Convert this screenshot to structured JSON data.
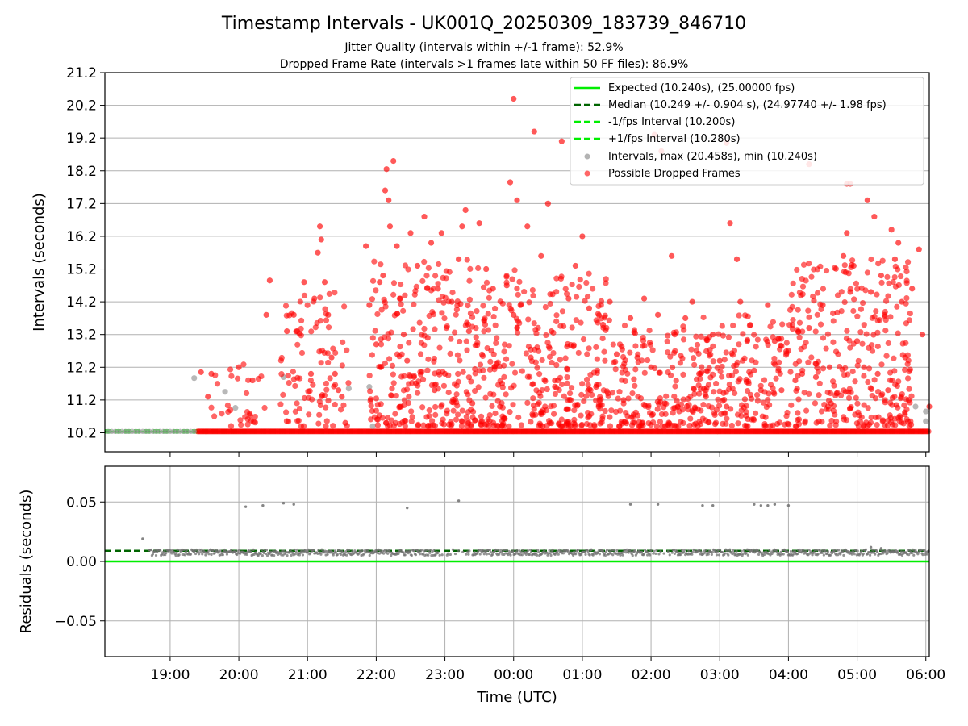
{
  "chart_data": [
    {
      "type": "scatter",
      "title": "Timestamp Intervals - UK001Q_20250309_183739_846710",
      "subtitle_lines": [
        "Jitter Quality (intervals within +/-1 frame): 52.9%",
        "Dropped Frame Rate (intervals >1 frames late within 50 FF files): 86.9%"
      ],
      "ylabel": "Intervals (seconds)",
      "xlabel": "",
      "x_unit": "hours (UTC) since 00:00 on the first day; values >24 are after midnight",
      "xlim": [
        18.05,
        30.05
      ],
      "ylim": [
        9.62,
        21.2
      ],
      "yticks": [
        10.2,
        11.2,
        12.2,
        13.2,
        14.2,
        15.2,
        16.2,
        17.2,
        18.2,
        19.2,
        20.2,
        21.2
      ],
      "ytick_labels": [
        "10.2",
        "11.2",
        "12.2",
        "13.2",
        "14.2",
        "15.2",
        "16.2",
        "17.2",
        "18.2",
        "19.2",
        "20.2",
        "21.2"
      ],
      "grid": true,
      "legend_position": "top-right",
      "legend": [
        "Expected (10.240s), (25.00000 fps)",
        "Median (10.249 +/- 0.904 s), (24.97740 +/- 1.98 fps)",
        "-1/fps Interval (10.200s)",
        "+1/fps Interval (10.280s)",
        "Intervals, max (20.458s), min (10.240s)",
        "Possible Dropped Frames"
      ],
      "reference_lines": [
        {
          "name": "Expected",
          "y": 10.24,
          "color": "#00ee00",
          "style": "solid"
        },
        {
          "name": "Median",
          "y": 10.249,
          "color": "#006400",
          "style": "dashed"
        },
        {
          "name": "-1/fps",
          "y": 10.2,
          "color": "#00ee00",
          "style": "dashed"
        },
        {
          "name": "+1/fps",
          "y": 10.28,
          "color": "#00ee00",
          "style": "dashed"
        }
      ],
      "series": [
        {
          "points": [
            [
              19.35,
              11.87
            ],
            [
              19.8,
              11.45
            ],
            [
              19.95,
              10.96
            ],
            [
              20.65,
              11.9
            ],
            [
              21.6,
              11.55
            ],
            [
              21.9,
              11.6
            ],
            [
              21.95,
              10.4
            ],
            [
              29.85,
              11.0
            ],
            [
              30.0,
              10.85
            ],
            [
              30.0,
              10.55
            ]
          ],
          "color": "#a0a0a0"
        },
        {
          "points": [
            [
              19.45,
              12.05
            ],
            [
              19.55,
              11.3
            ],
            [
              19.6,
              12.0
            ],
            [
              20.0,
              12.2
            ],
            [
              20.2,
              11.8
            ],
            [
              20.4,
              13.8
            ],
            [
              20.45,
              14.85
            ],
            [
              20.7,
              13.3
            ],
            [
              20.8,
              13.8
            ],
            [
              20.85,
              13.3
            ],
            [
              20.95,
              14.8
            ],
            [
              21.05,
              12.0
            ],
            [
              21.1,
              14.3
            ],
            [
              21.15,
              15.7
            ],
            [
              21.18,
              16.5
            ],
            [
              21.2,
              16.1
            ],
            [
              21.25,
              14.8
            ],
            [
              21.3,
              13.8
            ],
            [
              21.35,
              12.5
            ],
            [
              21.4,
              12.0
            ],
            [
              21.45,
              11.5
            ],
            [
              21.5,
              11.3
            ],
            [
              21.55,
              10.5
            ],
            [
              21.85,
              15.9
            ],
            [
              21.9,
              14.1
            ],
            [
              22.0,
              12.9
            ],
            [
              22.05,
              14.8
            ],
            [
              22.1,
              15.0
            ],
            [
              22.13,
              17.6
            ],
            [
              22.15,
              18.25
            ],
            [
              22.18,
              17.3
            ],
            [
              22.2,
              16.5
            ],
            [
              22.25,
              18.5
            ],
            [
              22.3,
              15.9
            ],
            [
              22.35,
              14.3
            ],
            [
              22.4,
              13.2
            ],
            [
              22.45,
              12.4
            ],
            [
              22.5,
              16.3
            ],
            [
              22.55,
              11.9
            ],
            [
              22.6,
              15.3
            ],
            [
              22.7,
              16.8
            ],
            [
              22.75,
              13.1
            ],
            [
              22.8,
              16.0
            ],
            [
              22.85,
              11.5
            ],
            [
              22.9,
              14.6
            ],
            [
              22.95,
              16.3
            ],
            [
              23.0,
              12.0
            ],
            [
              23.1,
              14.2
            ],
            [
              23.2,
              15.5
            ],
            [
              23.25,
              16.5
            ],
            [
              23.3,
              17.0
            ],
            [
              23.35,
              13.3
            ],
            [
              23.4,
              11.1
            ],
            [
              23.5,
              16.6
            ],
            [
              23.6,
              15.2
            ],
            [
              23.7,
              14.6
            ],
            [
              23.75,
              12.3
            ],
            [
              23.8,
              11.0
            ],
            [
              23.9,
              14.7
            ],
            [
              23.95,
              17.85
            ],
            [
              24.0,
              13.8
            ],
            [
              24.05,
              17.3
            ],
            [
              24.1,
              14.1
            ],
            [
              24.2,
              16.5
            ],
            [
              24.25,
              12.5
            ],
            [
              24.3,
              19.4
            ],
            [
              24.4,
              15.6
            ],
            [
              24.5,
              17.2
            ],
            [
              24.55,
              13.3
            ],
            [
              24.6,
              11.8
            ],
            [
              24.7,
              19.1
            ],
            [
              24.8,
              14.3
            ],
            [
              24.9,
              15.3
            ],
            [
              25.0,
              16.2
            ],
            [
              25.1,
              14.0
            ],
            [
              25.2,
              11.6
            ],
            [
              25.3,
              13.5
            ],
            [
              25.4,
              14.2
            ],
            [
              25.5,
              12.6
            ],
            [
              25.6,
              11.2
            ],
            [
              25.7,
              13.7
            ],
            [
              25.8,
              12.5
            ],
            [
              25.9,
              14.3
            ],
            [
              26.0,
              12.2
            ],
            [
              26.1,
              13.8
            ],
            [
              26.2,
              11.1
            ],
            [
              26.3,
              15.6
            ],
            [
              26.5,
              13.7
            ],
            [
              26.6,
              14.2
            ],
            [
              26.7,
              12.0
            ],
            [
              26.8,
              11.3
            ],
            [
              26.9,
              13.2
            ],
            [
              27.0,
              12.4
            ],
            [
              27.1,
              11.0
            ],
            [
              27.15,
              16.6
            ],
            [
              27.25,
              15.5
            ],
            [
              27.3,
              14.2
            ],
            [
              27.4,
              13.0
            ],
            [
              27.5,
              12.1
            ],
            [
              27.6,
              11.5
            ],
            [
              27.7,
              14.1
            ],
            [
              27.8,
              13.0
            ],
            [
              27.9,
              11.5
            ],
            [
              28.0,
              12.7
            ],
            [
              28.1,
              11.8
            ],
            [
              28.2,
              12.0
            ],
            [
              28.3,
              13.4
            ],
            [
              28.4,
              11.9
            ],
            [
              28.5,
              14.1
            ],
            [
              28.6,
              12.2
            ],
            [
              28.7,
              11.4
            ],
            [
              28.8,
              15.6
            ],
            [
              28.85,
              16.3
            ],
            [
              28.9,
              14.5
            ],
            [
              28.95,
              15.3
            ],
            [
              29.0,
              13.0
            ],
            [
              29.1,
              12.2
            ],
            [
              29.15,
              17.3
            ],
            [
              29.2,
              14.5
            ],
            [
              29.25,
              16.8
            ],
            [
              29.3,
              12.0
            ],
            [
              29.35,
              15.0
            ],
            [
              29.4,
              13.8
            ],
            [
              29.45,
              11.5
            ],
            [
              29.5,
              16.4
            ],
            [
              29.55,
              15.5
            ],
            [
              29.6,
              16.0
            ],
            [
              29.65,
              14.2
            ],
            [
              29.7,
              12.5
            ],
            [
              29.75,
              11.2
            ],
            [
              29.8,
              14.6
            ],
            [
              29.9,
              15.8
            ],
            [
              29.95,
              13.2
            ],
            [
              30.05,
              11.0
            ],
            [
              26.05,
              19.3
            ],
            [
              26.15,
              18.8
            ],
            [
              27.1,
              19.05
            ],
            [
              28.3,
              18.4
            ],
            [
              24.0,
              20.4
            ],
            [
              28.9,
              17.8
            ],
            [
              28.85,
              17.8
            ]
          ],
          "color": "#ff0000"
        }
      ]
    },
    {
      "type": "scatter",
      "ylabel": "Residuals (seconds)",
      "xlabel": "Time (UTC)",
      "xlim": [
        18.05,
        30.05
      ],
      "ylim": [
        -0.08,
        0.08
      ],
      "yticks": [
        -0.05,
        0.0,
        0.05
      ],
      "ytick_labels": [
        "−0.05",
        "0.00",
        "0.05"
      ],
      "xticks": [
        19,
        20,
        21,
        22,
        23,
        24,
        25,
        26,
        27,
        28,
        29,
        30
      ],
      "xtick_labels": [
        "19:00",
        "20:00",
        "21:00",
        "22:00",
        "23:00",
        "00:00",
        "01:00",
        "02:00",
        "03:00",
        "04:00",
        "05:00",
        "06:00"
      ],
      "grid": true,
      "reference_lines": [
        {
          "name": "zero",
          "y": 0.0,
          "color": "#00ee00",
          "style": "solid"
        },
        {
          "name": "median",
          "y": 0.009,
          "color": "#006400",
          "style": "dashed"
        }
      ],
      "series": [
        {
          "points": [
            [
              18.6,
              0.019
            ],
            [
              20.1,
              0.046
            ],
            [
              20.35,
              0.047
            ],
            [
              20.65,
              0.049
            ],
            [
              20.8,
              0.048
            ],
            [
              22.45,
              0.045
            ],
            [
              23.2,
              0.051
            ],
            [
              25.7,
              0.048
            ],
            [
              26.1,
              0.048
            ],
            [
              26.75,
              0.047
            ],
            [
              26.9,
              0.047
            ],
            [
              27.5,
              0.048
            ],
            [
              27.6,
              0.047
            ],
            [
              27.7,
              0.047
            ],
            [
              27.8,
              0.048
            ],
            [
              28.0,
              0.047
            ],
            [
              29.2,
              0.012
            ],
            [
              29.35,
              0.011
            ]
          ],
          "color": "#707070"
        }
      ]
    }
  ]
}
